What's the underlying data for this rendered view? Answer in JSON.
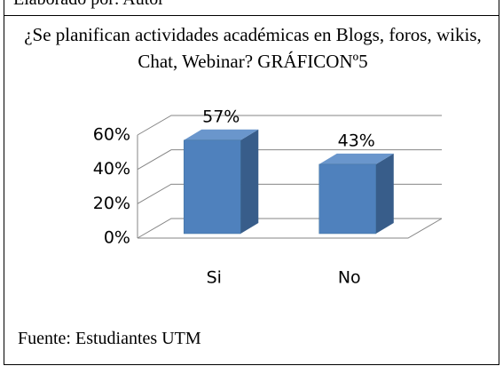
{
  "note_top": "Elaborado por: Autor",
  "chart_data": {
    "type": "bar3d",
    "title": "¿Se planifican actividades académicas en Blogs, foros, wikis, Chat, Webinar? GRÁFICONº5",
    "categories": [
      "Si",
      "No"
    ],
    "values": [
      57,
      43
    ],
    "value_labels": [
      "57%",
      "43%"
    ],
    "color": "#4f81bd",
    "ylim": [
      0,
      60
    ],
    "yticks": [
      {
        "value": 0,
        "label": "0%"
      },
      {
        "value": 20,
        "label": "20%"
      },
      {
        "value": 40,
        "label": "40%"
      },
      {
        "value": 60,
        "label": "60%"
      }
    ],
    "grid": true
  },
  "source": "Fuente: Estudiantes UTM"
}
